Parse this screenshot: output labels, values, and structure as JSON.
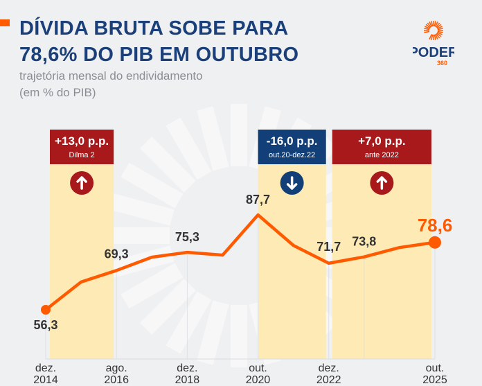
{
  "header": {
    "title_line1": "DÍVIDA BRUTA SOBE PARA",
    "title_line2": "78,6% DO PIB EM OUTUBRO",
    "subtitle_line1": "trajetória mensal do endividamento",
    "subtitle_line2": "(em % do PIB)"
  },
  "logo": {
    "text": "PODER",
    "sub": "360"
  },
  "colors": {
    "line": "#ff5a00",
    "title": "#1b3f78",
    "band": "#fdeab4",
    "red": "#a8191b",
    "blue": "#123f78"
  },
  "chart_data": {
    "type": "line",
    "ylim": [
      50,
      95
    ],
    "grid": false,
    "points": [
      {
        "label": "dez. 2014",
        "value": 56.3,
        "tick": [
          "dez.",
          "2014"
        ],
        "show_value": true
      },
      {
        "value": 65.5
      },
      {
        "label": "ago. 2016",
        "value": 69.3,
        "tick": [
          "ago.",
          "2016"
        ],
        "show_value": true
      },
      {
        "value": 73.7
      },
      {
        "label": "dez. 2018",
        "value": 75.3,
        "tick": [
          "dez.",
          "2018"
        ],
        "show_value": true
      },
      {
        "value": 74.4
      },
      {
        "label": "out. 2020",
        "value": 87.7,
        "tick": [
          "out.",
          "2020"
        ],
        "show_value": true
      },
      {
        "value": 77.6
      },
      {
        "label": "dez. 2022",
        "value": 71.7,
        "tick": [
          "dez.",
          "2022"
        ],
        "show_value": true
      },
      {
        "value": 73.8,
        "show_value": true
      },
      {
        "value": 76.9
      },
      {
        "label": "out. 2025",
        "value": 78.6,
        "tick": [
          "out.",
          "2025"
        ],
        "show_value": true,
        "highlight": true
      }
    ],
    "value_labels": {
      "0": "56,3",
      "2": "69,3",
      "4": "75,3",
      "6": "87,7",
      "8": "71,7",
      "9": "73,8",
      "11": "78,6"
    },
    "bands": [
      {
        "from": 0,
        "to": 2,
        "value": "+13,0 p.p.",
        "note": "Dilma 2",
        "direction": "up",
        "color": "#a8191b"
      },
      {
        "from": 6,
        "to": 8,
        "value": "-16,0 p.p.",
        "note": "out.20-dez.22",
        "direction": "down",
        "color": "#123f78"
      },
      {
        "from": 8,
        "to": 11,
        "value": "+7,0 p.p.",
        "note": "ante 2022",
        "direction": "up",
        "color": "#a8191b"
      }
    ]
  }
}
